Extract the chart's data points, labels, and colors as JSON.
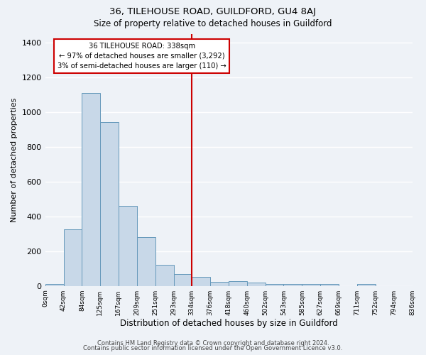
{
  "title": "36, TILEHOUSE ROAD, GUILDFORD, GU4 8AJ",
  "subtitle": "Size of property relative to detached houses in Guildford",
  "xlabel": "Distribution of detached houses by size in Guildford",
  "ylabel": "Number of detached properties",
  "bar_values": [
    10,
    325,
    1110,
    940,
    460,
    280,
    120,
    70,
    50,
    25,
    28,
    18,
    10,
    10,
    10,
    10,
    0,
    10,
    0,
    0
  ],
  "bin_edges": [
    0,
    42,
    84,
    125,
    167,
    209,
    251,
    293,
    334,
    376,
    418,
    460,
    502,
    543,
    585,
    627,
    669,
    711,
    752,
    794,
    836
  ],
  "tick_labels": [
    "0sqm",
    "42sqm",
    "84sqm",
    "125sqm",
    "167sqm",
    "209sqm",
    "251sqm",
    "293sqm",
    "334sqm",
    "376sqm",
    "418sqm",
    "460sqm",
    "502sqm",
    "543sqm",
    "585sqm",
    "627sqm",
    "669sqm",
    "711sqm",
    "752sqm",
    "794sqm",
    "836sqm"
  ],
  "bar_color": "#c8d8e8",
  "bar_edge_color": "#6699bb",
  "vline_x": 334,
  "vline_color": "#cc0000",
  "annotation_title": "36 TILEHOUSE ROAD: 338sqm",
  "annotation_line1": "← 97% of detached houses are smaller (3,292)",
  "annotation_line2": "3% of semi-detached houses are larger (110) →",
  "annotation_box_color": "#cc0000",
  "background_color": "#eef2f7",
  "grid_color": "#d8dde8",
  "footer_line1": "Contains HM Land Registry data © Crown copyright and database right 2024.",
  "footer_line2": "Contains public sector information licensed under the Open Government Licence v3.0.",
  "ylim": [
    0,
    1450
  ],
  "yticks": [
    0,
    200,
    400,
    600,
    800,
    1000,
    1200,
    1400
  ]
}
